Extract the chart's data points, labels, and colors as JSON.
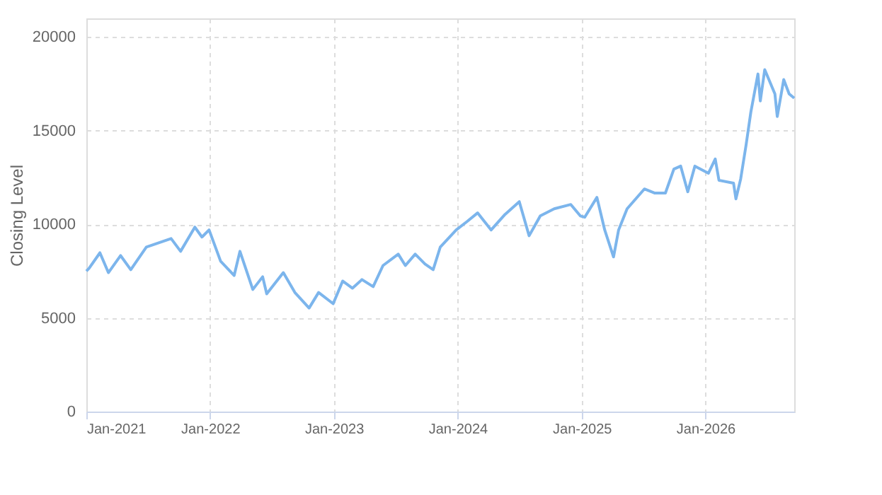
{
  "chart_data": {
    "type": "line",
    "ylabel": "Closing Level",
    "x": [
      "2021-01-01",
      "2021-01-09",
      "2021-02-10",
      "2021-03-07",
      "2021-04-12",
      "2021-05-12",
      "2021-06-27",
      "2021-08-04",
      "2021-09-08",
      "2021-10-06",
      "2021-11-17",
      "2021-12-08",
      "2021-12-29",
      "2022-02-01",
      "2022-03-13",
      "2022-03-30",
      "2022-05-07",
      "2022-06-05",
      "2022-06-17",
      "2022-08-05",
      "2022-09-08",
      "2022-10-20",
      "2022-11-17",
      "2022-12-30",
      "2023-01-27",
      "2023-02-25",
      "2023-03-25",
      "2023-04-27",
      "2023-05-26",
      "2023-07-10",
      "2023-07-31",
      "2023-08-29",
      "2023-09-27",
      "2023-10-21",
      "2023-11-11",
      "2023-12-28",
      "2024-01-29",
      "2024-02-29",
      "2024-04-09",
      "2024-05-20",
      "2024-07-01",
      "2024-07-30",
      "2024-09-01",
      "2024-10-12",
      "2024-11-30",
      "2024-12-28",
      "2025-01-10",
      "2025-02-15",
      "2025-03-10",
      "2025-04-05",
      "2025-04-20",
      "2025-05-15",
      "2025-07-05",
      "2025-08-05",
      "2025-09-05",
      "2025-09-30",
      "2025-10-20",
      "2025-11-10",
      "2025-12-01",
      "2026-01-10",
      "2026-01-30",
      "2026-02-10",
      "2026-03-25",
      "2026-04-01",
      "2026-04-15",
      "2026-05-01",
      "2026-05-15",
      "2026-06-05",
      "2026-06-12",
      "2026-06-25",
      "2026-07-25",
      "2026-08-01",
      "2026-08-20",
      "2026-09-05",
      "2026-09-20"
    ],
    "series": [
      {
        "color": "#7cb5ec",
        "values": [
          7500,
          7650,
          8480,
          7420,
          8330,
          7580,
          8790,
          9020,
          9240,
          8560,
          9850,
          9320,
          9700,
          8030,
          7270,
          8560,
          6520,
          7200,
          6290,
          7420,
          6360,
          5530,
          6360,
          5760,
          6970,
          6590,
          7050,
          6670,
          7800,
          8410,
          7800,
          8410,
          7880,
          7580,
          8790,
          9700,
          10150,
          10610,
          9700,
          10530,
          11210,
          9390,
          10450,
          10830,
          11060,
          10450,
          10380,
          11440,
          9700,
          8260,
          9700,
          10830,
          11890,
          11670,
          11670,
          12950,
          13110,
          11740,
          13110,
          12730,
          13490,
          12350,
          12200,
          11360,
          12420,
          14240,
          15990,
          18030,
          16590,
          18260,
          16970,
          15760,
          17730,
          16970,
          16740
        ]
      }
    ],
    "xlim": [
      "2021-01-01",
      "2026-09-20"
    ],
    "xticks": [
      {
        "value": "2021-01-01",
        "label": "Jan-2021"
      },
      {
        "value": "2022-01-01",
        "label": "Jan-2022"
      },
      {
        "value": "2023-01-01",
        "label": "Jan-2023"
      },
      {
        "value": "2024-01-01",
        "label": "Jan-2024"
      },
      {
        "value": "2025-01-01",
        "label": "Jan-2025"
      },
      {
        "value": "2026-01-01",
        "label": "Jan-2026"
      }
    ],
    "ylim": [
      0,
      21000
    ],
    "yticks": [
      0,
      5000,
      10000,
      15000,
      20000
    ],
    "grid": true,
    "legend": false,
    "marker": "none",
    "line_style": "solid"
  }
}
